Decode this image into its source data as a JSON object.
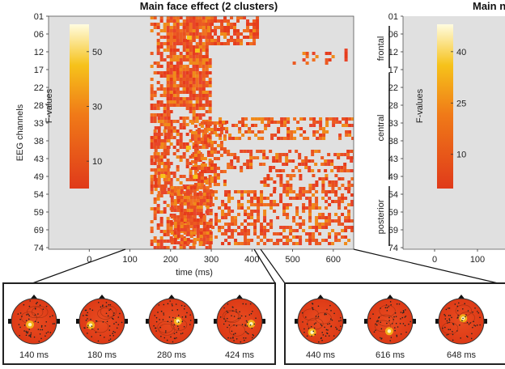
{
  "left_panel": {
    "title": "Main face effect (2 clusters)",
    "ylabel": "EEG channels",
    "xlabel": "time (ms)",
    "y_ticks": [
      "01",
      "06",
      "12",
      "17",
      "22",
      "28",
      "33",
      "38",
      "43",
      "49",
      "54",
      "59",
      "69",
      "74"
    ],
    "x_ticks": [
      "0",
      "100",
      "200",
      "300",
      "400",
      "500",
      "600"
    ],
    "x_range_ms": [
      -100,
      650
    ],
    "colorbar": {
      "label": "F-values",
      "ticks": [
        "50",
        "30",
        "10"
      ],
      "tick_values": [
        50,
        30,
        10
      ],
      "range": [
        0,
        60
      ]
    }
  },
  "right_panel": {
    "title": "Main n",
    "y_ticks": [
      "01",
      "06",
      "12",
      "17",
      "22",
      "28",
      "33",
      "38",
      "43",
      "49",
      "54",
      "59",
      "69",
      "74"
    ],
    "x_ticks": [
      "0",
      "100"
    ],
    "regions": [
      "frontal",
      "central",
      "posterior"
    ],
    "colorbar": {
      "label": "F-values",
      "ticks": [
        "40",
        "25",
        "10"
      ],
      "tick_values": [
        40,
        25,
        10
      ],
      "range": [
        0,
        48
      ]
    }
  },
  "topomaps_left": [
    {
      "label": "140 ms",
      "time_ms": 140
    },
    {
      "label": "180 ms",
      "time_ms": 180
    },
    {
      "label": "280 ms",
      "time_ms": 280
    },
    {
      "label": "424 ms",
      "time_ms": 424
    }
  ],
  "topomaps_right": [
    {
      "label": "440 ms",
      "time_ms": 440
    },
    {
      "label": "616 ms",
      "time_ms": 616
    },
    {
      "label": "648 ms",
      "time_ms": 648
    }
  ],
  "colors": {
    "background": "#e0e0e0",
    "cmap_low": "#e03a1a",
    "cmap_mid": "#f5a010",
    "cmap_high": "#fff5c0",
    "cluster": "#e8532a"
  }
}
